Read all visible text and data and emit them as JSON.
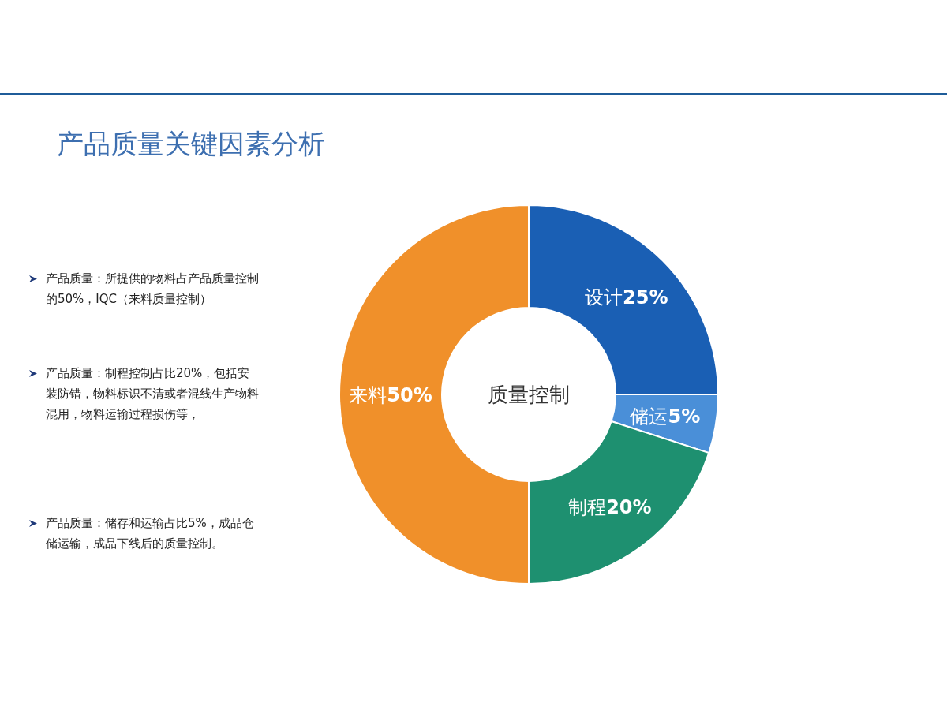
{
  "chart_data": {
    "type": "donut",
    "title": "产品质量关键因素分析",
    "categories": [
      "设计",
      "储运",
      "制程",
      "来料"
    ],
    "values": [
      25,
      5,
      20,
      50
    ],
    "colors": [
      "#1a5fb4",
      "#4a8fd8",
      "#1e9070",
      "#f0902a"
    ],
    "value_labels": [
      "25%",
      "5%",
      "20%",
      "50%"
    ],
    "annotations": [
      "产品质量：所提供的物料占产品质量控制的50%，IQC（来料质量控制）",
      "产品质量：制程控制占比20%，包括安装防错，物料标识不清或者混线生产物料混用，物料运输过程损伤等，",
      "产品质量：储存和运输占比5%，成品仓储运输，成品下线后的质量控制。",
      "质量控制"
    ]
  }
}
